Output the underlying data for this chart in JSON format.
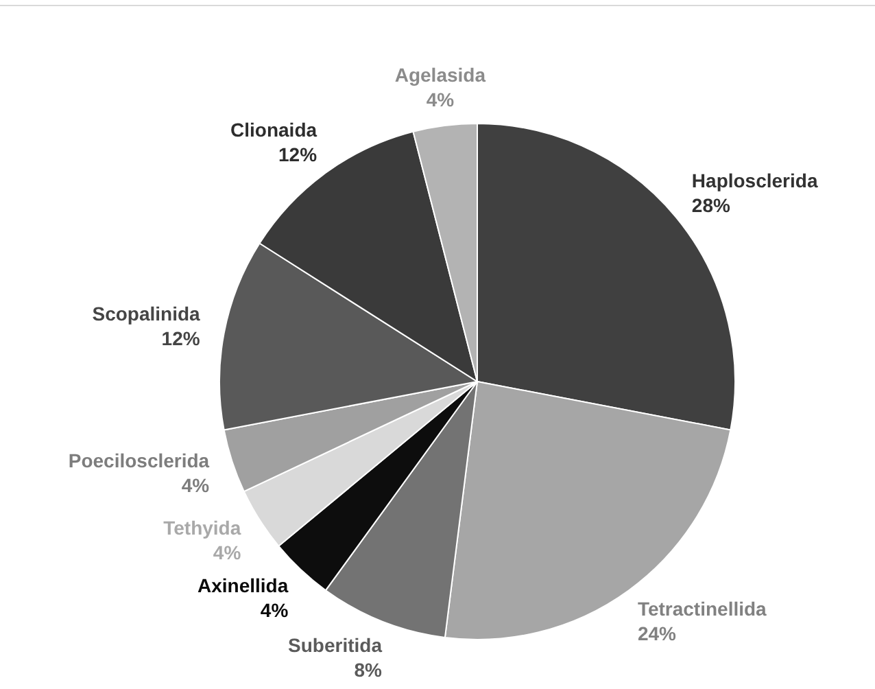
{
  "chart_data": {
    "type": "pie",
    "categories": [
      "Haplosclerida",
      "Tetractinellida",
      "Suberitida",
      "Axinellida",
      "Tethyida",
      "Poecilosclerida",
      "Scopalinida",
      "Clionaida",
      "Agelasida"
    ],
    "values": [
      28,
      24,
      8,
      4,
      4,
      4,
      12,
      12,
      4
    ],
    "colors": [
      "#404040",
      "#a6a6a6",
      "#737373",
      "#0d0d0d",
      "#d9d9d9",
      "#a0a0a0",
      "#595959",
      "#3a3a3a",
      "#b3b3b3"
    ],
    "value_labels": [
      "28%",
      "24%",
      "8%",
      "4%",
      "4%",
      "4%",
      "12%",
      "12%",
      "4%"
    ]
  }
}
